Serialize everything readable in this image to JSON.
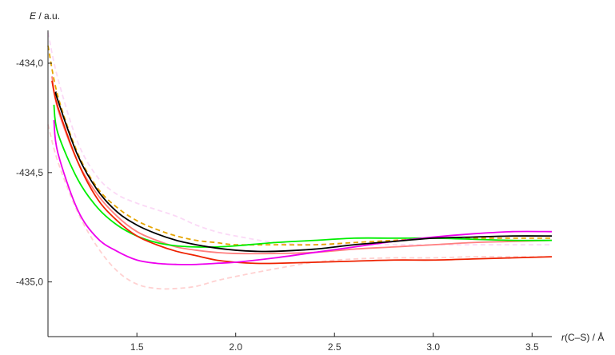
{
  "chart_data": {
    "type": "line",
    "title": "",
    "ylabel_var": "E",
    "ylabel_unit": " / a.u.",
    "xlabel_var": "r",
    "xlabel_unit": "(C–S) / Å",
    "xlim": [
      1.05,
      3.6
    ],
    "ylim": [
      -435.25,
      -433.85
    ],
    "y_origin": -435.25,
    "x_ticks": [
      1.5,
      2.0,
      2.5,
      3.0,
      3.5
    ],
    "x_tick_labels": [
      "1.5",
      "2.0",
      "2.5",
      "3.0",
      "3.5"
    ],
    "y_ticks": [
      -434.0,
      -434.5,
      -435.0
    ],
    "y_tick_labels": [
      "-434,0",
      "-434,5",
      "-435,0"
    ],
    "grid": false,
    "series": [
      {
        "color": "#ffb3b3",
        "dash": "dashed",
        "opacity": 0.6,
        "x": [
          1.05,
          1.1,
          1.2,
          1.3,
          1.4,
          1.5,
          1.6,
          1.7,
          1.8,
          1.9,
          2.0,
          2.2,
          2.4,
          2.6,
          2.8,
          3.0,
          3.2,
          3.4,
          3.6
        ],
        "y": [
          -434.28,
          -434.45,
          -434.68,
          -434.84,
          -434.95,
          -435.01,
          -435.03,
          -435.03,
          -435.02,
          -434.995,
          -434.975,
          -434.94,
          -434.91,
          -434.895,
          -434.89,
          -434.89,
          -434.885,
          -434.885,
          -434.885
        ]
      },
      {
        "color": "#f8c0f0",
        "dash": "dashed",
        "opacity": 0.6,
        "x": [
          1.05,
          1.1,
          1.2,
          1.3,
          1.4,
          1.5,
          1.6,
          1.7,
          1.8,
          1.9,
          2.0,
          2.2,
          2.4,
          2.6,
          2.8,
          3.0,
          3.2,
          3.4,
          3.6
        ],
        "y": [
          -433.86,
          -434.07,
          -434.36,
          -434.52,
          -434.6,
          -434.64,
          -434.67,
          -434.7,
          -434.74,
          -434.77,
          -434.79,
          -434.82,
          -434.83,
          -434.83,
          -434.83,
          -434.83,
          -434.83,
          -434.83,
          -434.83
        ]
      },
      {
        "color": "#e6a400",
        "dash": "dashed",
        "x": [
          1.05,
          1.1,
          1.2,
          1.3,
          1.4,
          1.5,
          1.6,
          1.7,
          1.8,
          1.9,
          2.0,
          2.2,
          2.4,
          2.6,
          2.8,
          3.0,
          3.2,
          3.4,
          3.6
        ],
        "y": [
          -433.92,
          -434.15,
          -434.41,
          -434.57,
          -434.66,
          -434.72,
          -434.76,
          -434.79,
          -434.81,
          -434.82,
          -434.83,
          -434.83,
          -434.83,
          -434.82,
          -434.81,
          -434.8,
          -434.8,
          -434.8,
          -434.8
        ]
      },
      {
        "color": "#ff7f7f",
        "dash": "solid",
        "x": [
          1.07,
          1.1,
          1.2,
          1.3,
          1.4,
          1.5,
          1.6,
          1.7,
          1.8,
          1.9,
          2.0,
          2.2,
          2.4,
          2.6,
          2.8,
          3.0,
          3.2,
          3.4,
          3.6
        ],
        "y": [
          -434.06,
          -434.21,
          -434.45,
          -434.6,
          -434.7,
          -434.77,
          -434.81,
          -434.84,
          -434.855,
          -434.865,
          -434.87,
          -434.87,
          -434.865,
          -434.85,
          -434.84,
          -434.83,
          -434.82,
          -434.815,
          -434.81
        ]
      },
      {
        "color": "#00ee00",
        "dash": "solid",
        "x": [
          1.08,
          1.1,
          1.2,
          1.3,
          1.4,
          1.5,
          1.6,
          1.7,
          1.8,
          1.9,
          2.0,
          2.2,
          2.4,
          2.6,
          2.8,
          3.0,
          3.2,
          3.4,
          3.6
        ],
        "y": [
          -434.19,
          -434.32,
          -434.53,
          -434.66,
          -434.74,
          -434.79,
          -434.82,
          -434.835,
          -434.84,
          -434.84,
          -434.835,
          -434.82,
          -434.81,
          -434.8,
          -434.8,
          -434.8,
          -434.805,
          -434.81,
          -434.81
        ]
      },
      {
        "color": "#ee2200",
        "dash": "solid",
        "x": [
          1.07,
          1.1,
          1.2,
          1.3,
          1.4,
          1.5,
          1.6,
          1.7,
          1.8,
          1.9,
          2.0,
          2.1,
          2.2,
          2.4,
          2.6,
          2.8,
          3.0,
          3.2,
          3.4,
          3.6
        ],
        "y": [
          -434.08,
          -434.2,
          -434.45,
          -434.62,
          -434.72,
          -434.79,
          -434.83,
          -434.86,
          -434.88,
          -434.9,
          -434.91,
          -434.915,
          -434.915,
          -434.91,
          -434.905,
          -434.9,
          -434.9,
          -434.895,
          -434.89,
          -434.885
        ]
      },
      {
        "color": "#ee00ee",
        "dash": "solid",
        "x": [
          1.08,
          1.1,
          1.2,
          1.3,
          1.4,
          1.5,
          1.6,
          1.7,
          1.8,
          1.9,
          2.0,
          2.2,
          2.4,
          2.6,
          2.8,
          3.0,
          3.2,
          3.4,
          3.6
        ],
        "y": [
          -434.26,
          -434.41,
          -434.67,
          -434.8,
          -434.86,
          -434.9,
          -434.915,
          -434.92,
          -434.92,
          -434.915,
          -434.91,
          -434.89,
          -434.865,
          -434.84,
          -434.815,
          -434.795,
          -434.78,
          -434.77,
          -434.77
        ]
      },
      {
        "color": "#000000",
        "dash": "solid",
        "x": [
          1.09,
          1.1,
          1.2,
          1.3,
          1.4,
          1.5,
          1.6,
          1.7,
          1.8,
          1.9,
          2.0,
          2.1,
          2.2,
          2.4,
          2.6,
          2.8,
          3.0,
          3.2,
          3.4,
          3.6
        ],
        "y": [
          -434.13,
          -434.17,
          -434.42,
          -434.58,
          -434.68,
          -434.74,
          -434.78,
          -434.81,
          -434.83,
          -434.845,
          -434.855,
          -434.86,
          -434.86,
          -434.85,
          -434.83,
          -434.815,
          -434.8,
          -434.795,
          -434.79,
          -434.79
        ]
      }
    ]
  }
}
